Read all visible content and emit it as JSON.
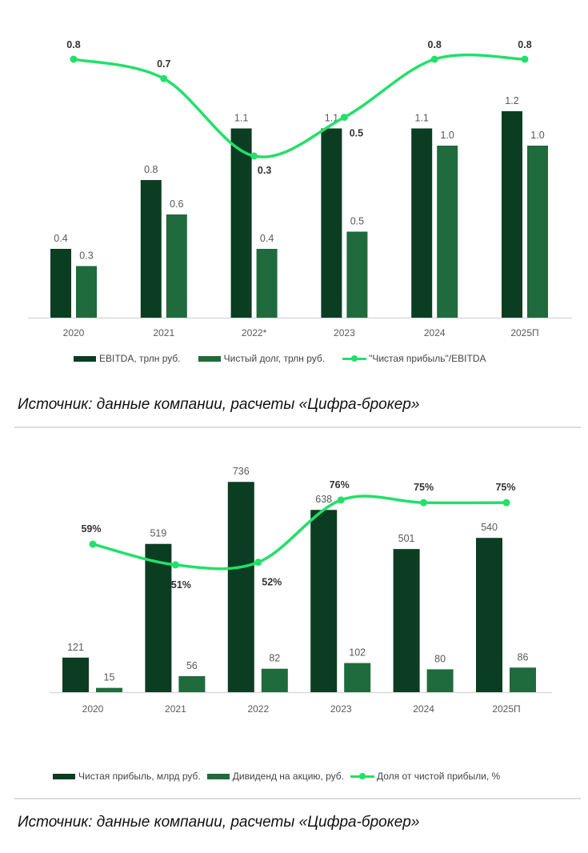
{
  "colors": {
    "primary_bar": "#0b3d22",
    "secondary_bar": "#1f6b3d",
    "line": "#22e06a",
    "axis": "#d9d9d9",
    "label": "#595959"
  },
  "chart_data": [
    {
      "type": "bar+line",
      "categories": [
        "2020",
        "2021",
        "2022*",
        "2023",
        "2024",
        "2025П"
      ],
      "series": [
        {
          "name": "EBITDA, трлн руб.",
          "kind": "bar",
          "values": [
            0.4,
            0.8,
            1.1,
            1.1,
            1.1,
            1.2
          ]
        },
        {
          "name": "Чистый долг, трлн руб.",
          "kind": "bar",
          "values": [
            0.3,
            0.6,
            0.4,
            0.5,
            1.0,
            1.0
          ]
        },
        {
          "name": "\"Чистая прибыль\"/EBITDA",
          "kind": "line",
          "axis": "secondary",
          "values": [
            0.8,
            0.7,
            0.3,
            0.5,
            0.8,
            0.8
          ]
        }
      ],
      "legend": "bottom",
      "grid": false
    },
    {
      "type": "bar+line",
      "categories": [
        "2020",
        "2021",
        "2022",
        "2023",
        "2024",
        "2025П"
      ],
      "series": [
        {
          "name": "Чистая прибыль, млрд руб.",
          "kind": "bar",
          "values": [
            121,
            519,
            736,
            638,
            501,
            540
          ]
        },
        {
          "name": "Дивиденд на акцию, руб.",
          "kind": "bar",
          "values": [
            15,
            56,
            82,
            102,
            80,
            86
          ]
        },
        {
          "name": "Доля от чистой прибыли, %",
          "kind": "line",
          "axis": "secondary",
          "values": [
            59,
            51,
            52,
            76,
            75,
            75
          ],
          "label_suffix": "%"
        }
      ],
      "legend": "bottom",
      "grid": false
    }
  ],
  "sources": [
    "Источник: данные компании, расчеты «Цифра-брокер»",
    "Источник: данные компании, расчеты «Цифра-брокер»"
  ]
}
